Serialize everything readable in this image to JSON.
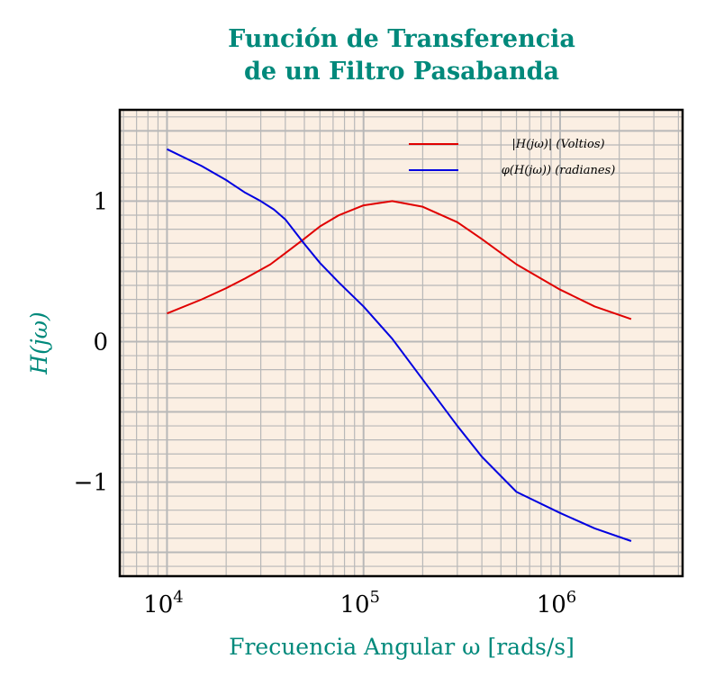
{
  "chart_data": {
    "type": "line",
    "title": [
      "Función de Transferencia",
      "de un Filtro Pasabanda"
    ],
    "xlabel": "Frecuencia Angular ω [rads/s]",
    "ylabel": "H(jω)",
    "xscale": "log",
    "xlim": [
      5750,
      4200000
    ],
    "ylim": [
      -1.67,
      1.65
    ],
    "xticks": [
      {
        "v": 10000,
        "base": "10",
        "exp": "4"
      },
      {
        "v": 100000,
        "base": "10",
        "exp": "5"
      },
      {
        "v": 1000000,
        "base": "10",
        "exp": "6"
      }
    ],
    "yticks": [
      {
        "v": 1,
        "label": "1"
      },
      {
        "v": 0,
        "label": "0"
      },
      {
        "v": -1,
        "label": "−1"
      }
    ],
    "grid": true,
    "legend_position": "top-right",
    "colors": {
      "title": "#00897b",
      "background": "#fbefe3",
      "grid": "#b8b8b8"
    },
    "series": [
      {
        "name": "|H(jω)| (Voltios)",
        "color": "#e00000",
        "x": [
          10000,
          15000,
          20000,
          25000,
          33600,
          40000,
          49700,
          60000,
          75000,
          100000,
          140000,
          200000,
          300000,
          400000,
          600000,
          1000000,
          1500000,
          2300000
        ],
        "y": [
          0.2,
          0.3,
          0.38,
          0.45,
          0.55,
          0.63,
          0.73,
          0.82,
          0.9,
          0.97,
          1.0,
          0.96,
          0.85,
          0.73,
          0.55,
          0.37,
          0.25,
          0.16
        ]
      },
      {
        "name": "φ(H(jω)) (radianes)",
        "color": "#0000e0",
        "x": [
          10000,
          15000,
          20000,
          25000,
          30000,
          35000,
          40000,
          49700,
          60000,
          75000,
          100000,
          140000,
          200000,
          300000,
          400000,
          600000,
          1000000,
          1500000,
          2300000
        ],
        "y": [
          1.37,
          1.25,
          1.15,
          1.06,
          1.0,
          0.94,
          0.87,
          0.7,
          0.56,
          0.42,
          0.25,
          0.02,
          -0.27,
          -0.6,
          -0.82,
          -1.07,
          -1.22,
          -1.33,
          -1.42
        ]
      }
    ]
  }
}
